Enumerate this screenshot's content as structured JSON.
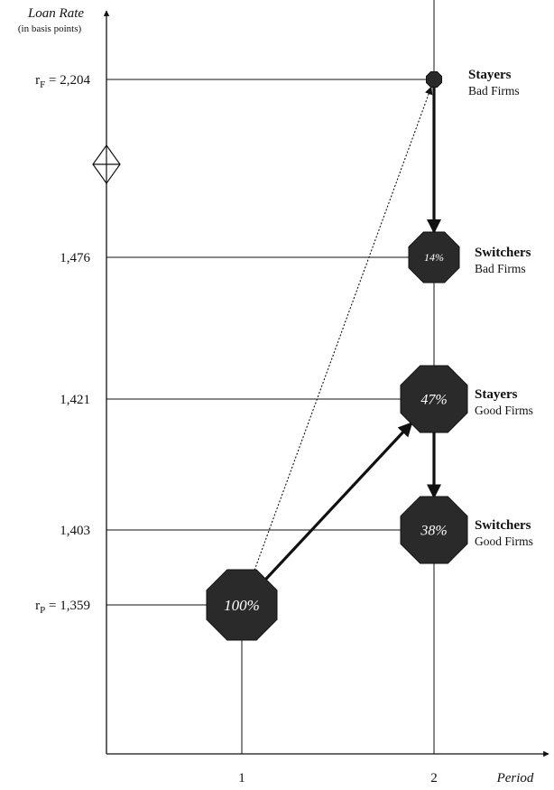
{
  "axes": {
    "y_title": "Loan Rate",
    "y_subtitle": "(in basis points)",
    "x_title": "Period",
    "x_ticks": [
      "1",
      "2"
    ]
  },
  "levels": [
    {
      "id": "rF",
      "value": 2204,
      "prefix": "r",
      "sub": "F",
      "text": " = 2,204"
    },
    {
      "id": "bad-switch",
      "value": 1476,
      "prefix": "",
      "sub": "",
      "text": "1,476"
    },
    {
      "id": "good-stay",
      "value": 1421,
      "prefix": "",
      "sub": "",
      "text": "1,421"
    },
    {
      "id": "good-switch",
      "value": 1403,
      "prefix": "",
      "sub": "",
      "text": "1,403"
    },
    {
      "id": "rP",
      "value": 1359,
      "prefix": "r",
      "sub": "P",
      "text": " = 1,359"
    }
  ],
  "nodes": [
    {
      "id": "start",
      "period": 1,
      "level": "rP",
      "pct": "100%",
      "size": "large",
      "title": "",
      "subtitle": ""
    },
    {
      "id": "bad-stayers",
      "period": 2,
      "level": "rF",
      "pct": "",
      "size": "tiny",
      "title": "Stayers",
      "subtitle": "Bad Firms"
    },
    {
      "id": "bad-switchers",
      "period": 2,
      "level": "bad-switch",
      "pct": "14%",
      "size": "small",
      "title": "Switchers",
      "subtitle": "Bad Firms"
    },
    {
      "id": "good-stayers",
      "period": 2,
      "level": "good-stay",
      "pct": "47%",
      "size": "medium",
      "title": "Stayers",
      "subtitle": "Good Firms"
    },
    {
      "id": "good-switchers",
      "period": 2,
      "level": "good-switch",
      "pct": "38%",
      "size": "medium",
      "title": "Switchers",
      "subtitle": "Good Firms"
    }
  ],
  "edges": [
    {
      "from": "start",
      "to": "bad-stayers",
      "style": "dotted"
    },
    {
      "from": "start",
      "to": "good-stayers",
      "style": "solid"
    },
    {
      "from": "bad-stayers",
      "to": "bad-switchers",
      "style": "solid"
    },
    {
      "from": "good-stayers",
      "to": "good-switchers",
      "style": "solid"
    }
  ],
  "axis_break_marker": "diamond-cross-icon"
}
